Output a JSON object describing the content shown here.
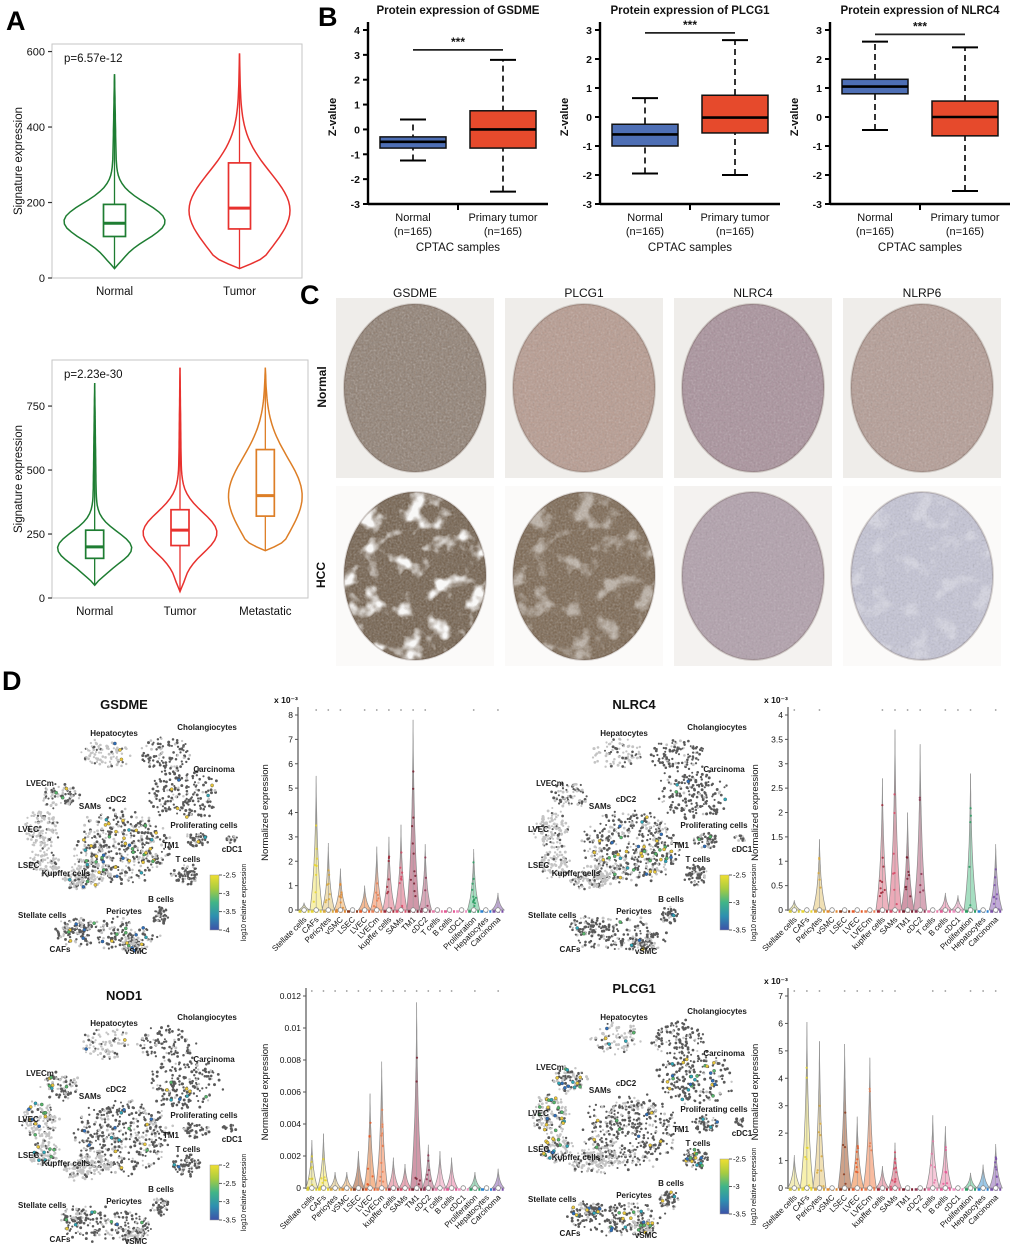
{
  "panels": {
    "A": "A",
    "B": "B",
    "C": "C",
    "D": "D"
  },
  "colors": {
    "tsne_dark": "#595959",
    "tsne_light": "#c4c4c4",
    "signal_palette": [
      "#e9c73b",
      "#57b66b",
      "#2fa7b8",
      "#2f6fba"
    ],
    "colorbar_gradient": [
      "#f0df30",
      "#a8cc40",
      "#40b488",
      "#2e8fb0",
      "#3d52a8"
    ]
  },
  "chart_data": [
    {
      "id": "A-top",
      "type": "violin",
      "p_value": "p=6.57e-12",
      "ylabel": "Signature expression",
      "ylim": [
        0,
        620
      ],
      "yticks": [
        0,
        200,
        400,
        600
      ],
      "categories": [
        "Normal",
        "Tumor"
      ],
      "colors": [
        "#1e7d32",
        "#e8312e"
      ],
      "stats": [
        {
          "min": 25,
          "q1": 110,
          "median": 145,
          "q3": 195,
          "max": 540,
          "bulge": 150
        },
        {
          "min": 25,
          "q1": 130,
          "median": 185,
          "q3": 305,
          "max": 595,
          "bulge": 180
        }
      ]
    },
    {
      "id": "A-bottom",
      "type": "violin",
      "p_value": "p=2.23e-30",
      "ylabel": "Signature expression",
      "ylim": [
        0,
        930
      ],
      "yticks": [
        0,
        250,
        500,
        750
      ],
      "categories": [
        "Normal",
        "Tumor",
        "Metastatic"
      ],
      "colors": [
        "#1e7d32",
        "#e8312e",
        "#dd7e26"
      ],
      "stats": [
        {
          "min": 50,
          "q1": 155,
          "median": 200,
          "q3": 265,
          "max": 840,
          "bulge": 195
        },
        {
          "min": 25,
          "q1": 205,
          "median": 265,
          "q3": 345,
          "max": 900,
          "bulge": 255
        },
        {
          "min": 185,
          "q1": 320,
          "median": 400,
          "q3": 580,
          "max": 900,
          "bulge": 400
        }
      ]
    },
    {
      "id": "B-GSDME",
      "type": "box",
      "title": "Protein expression of GSDME",
      "ylabel": "Z-value",
      "xlabel": "CPTAC samples",
      "significance": "***",
      "sig_y": 3.2,
      "ylim": [
        -3,
        4
      ],
      "yticks": [
        -3,
        -2,
        -1,
        0,
        1,
        2,
        3,
        4
      ],
      "categories": [
        [
          "Normal",
          "(n=165)"
        ],
        [
          "Primary tumor",
          "(n=165)"
        ]
      ],
      "colors": [
        "#4e6fb5",
        "#e64a2c"
      ],
      "stats": [
        {
          "low": -1.25,
          "q1": -0.75,
          "median": -0.5,
          "q3": -0.3,
          "high": 0.4
        },
        {
          "low": -2.5,
          "q1": -0.75,
          "median": 0.0,
          "q3": 0.75,
          "high": 2.8
        }
      ]
    },
    {
      "id": "B-PLCG1",
      "type": "box",
      "title": "Protein expression of PLCG1",
      "ylabel": "Z-value",
      "xlabel": "CPTAC samples",
      "significance": "***",
      "sig_y": 2.9,
      "ylim": [
        -3,
        3
      ],
      "yticks": [
        -3,
        -2,
        -1,
        0,
        1,
        2,
        3
      ],
      "categories": [
        [
          "Normal",
          "(n=165)"
        ],
        [
          "Primary tumor",
          "(n=165)"
        ]
      ],
      "colors": [
        "#4e6fb5",
        "#e64a2c"
      ],
      "stats": [
        {
          "low": -1.95,
          "q1": -1.0,
          "median": -0.6,
          "q3": -0.25,
          "high": 0.65
        },
        {
          "low": -2.0,
          "q1": -0.55,
          "median": -0.02,
          "q3": 0.75,
          "high": 2.65
        }
      ]
    },
    {
      "id": "B-NLRC4",
      "type": "box",
      "title": "Protein expression of NLRC4",
      "ylabel": "Z-value",
      "xlabel": "CPTAC samples",
      "significance": "***",
      "sig_y": 2.85,
      "ylim": [
        -3,
        3
      ],
      "yticks": [
        -3,
        -2,
        -1,
        0,
        1,
        2,
        3
      ],
      "categories": [
        [
          "Normal",
          "(n=165)"
        ],
        [
          "Primary tumor",
          "(n=165)"
        ]
      ],
      "colors": [
        "#4e6fb5",
        "#e64a2c"
      ],
      "stats": [
        {
          "low": -0.45,
          "q1": 0.8,
          "median": 1.05,
          "q3": 1.3,
          "high": 2.6
        },
        {
          "low": -2.55,
          "q1": -0.65,
          "median": 0.0,
          "q3": 0.55,
          "high": 2.4
        }
      ]
    },
    {
      "id": "D-GSDME-violin",
      "type": "violin",
      "title": "GSDME",
      "ylabel": "Normalized expression",
      "scale_label": "x 10⁻³",
      "ymax": 8,
      "yticks": [
        0,
        1,
        2,
        3,
        4,
        5,
        6,
        7,
        8
      ],
      "categories": [
        "Stellate cells",
        "CAFs",
        "Pericytes",
        "vSMC",
        "LSEC",
        "LVEC",
        "LVECm",
        "kupffer cells",
        "SAMs",
        "TM1",
        "cDC2",
        "T cells",
        "B cells",
        "cDC1",
        "Proliferation",
        "Hepatocytes",
        "Carcinoma"
      ],
      "peaks": [
        0.3,
        5.5,
        2.75,
        1.7,
        0.05,
        1.0,
        2.6,
        3.0,
        3.5,
        7.8,
        2.7,
        0.05,
        0.05,
        0.05,
        2.5,
        0.1,
        0.7
      ]
    },
    {
      "id": "D-NLRC4-violin",
      "type": "violin",
      "title": "NLRC4",
      "ylabel": "Normalized expression",
      "scale_label": "x 10⁻³",
      "ymax": 4,
      "yticks": [
        0,
        0.5,
        1,
        1.5,
        2,
        2.5,
        3,
        3.5,
        4
      ],
      "categories": [
        "Stellate cells",
        "CAFs",
        "Pericytes",
        "vSMC",
        "LSEC",
        "LVEC",
        "LVECm",
        "kupffer cells",
        "SAMs",
        "TM1",
        "cDC2",
        "T cells",
        "B cells",
        "cDC1",
        "Proliferation",
        "Hepatocytes",
        "Carcinoma"
      ],
      "peaks": [
        0.2,
        0.05,
        1.45,
        0.05,
        0,
        0.05,
        0.05,
        2.7,
        3.7,
        2.0,
        3.4,
        0.05,
        0.35,
        0.3,
        2.8,
        0.05,
        1.35
      ]
    },
    {
      "id": "D-NOD1-violin",
      "type": "violin",
      "title": "NOD1",
      "ylabel": "Normalized expression",
      "scale_label": "",
      "ymax": 0.012,
      "yticks": [
        0,
        0.002,
        0.004,
        0.006,
        0.008,
        0.01,
        0.012
      ],
      "categories": [
        "Stellate cells",
        "CAFs",
        "Pericytes",
        "vSMC",
        "LSEC",
        "LVEC",
        "LVECm",
        "kupffer cells",
        "SAMs",
        "TM1",
        "cDC2",
        "T cells",
        "B cells",
        "cDC1",
        "Proliferation",
        "Hepatocytes",
        "Carcinoma"
      ],
      "peaks": [
        0.003,
        0.0034,
        0.001,
        0.001,
        0.0023,
        0.0059,
        0.0079,
        0.0019,
        0.0015,
        0.0116,
        0.0027,
        0.0023,
        0.0019,
        0.0001,
        0.001,
        0.0001,
        0.0012
      ]
    },
    {
      "id": "D-PLCG1-violin",
      "type": "violin",
      "title": "PLCG1",
      "ylabel": "Normalized expression",
      "scale_label": "x 10⁻³",
      "ymax": 7,
      "yticks": [
        0,
        1,
        2,
        3,
        4,
        5,
        6,
        7
      ],
      "categories": [
        "Stellate cells",
        "CAFs",
        "Pericytes",
        "vSMC",
        "LSEC",
        "LVEC",
        "LVECm",
        "kupffer cells",
        "SAMs",
        "TM1",
        "cDC2",
        "T cells",
        "B cells",
        "cDC1",
        "Proliferation",
        "Hepatocytes",
        "Carcinoma"
      ],
      "peaks": [
        1.2,
        6.05,
        5.35,
        0.05,
        5.25,
        2.6,
        4.75,
        0.8,
        1.65,
        0.05,
        0.05,
        2.65,
        2.25,
        0.05,
        0.55,
        0.85,
        1.6
      ]
    },
    {
      "id": "D-GSDME-tsne",
      "type": "scatter",
      "title": "GSDME",
      "colorbar": {
        "label": "log10 relative expression",
        "ticks": [
          "-2.5",
          "-3",
          "-3.5",
          "-4"
        ]
      },
      "signal_regions": [
        {
          "area": "central",
          "count": 40
        },
        {
          "area": "bottom",
          "count": 16
        },
        {
          "area": "carcinoma",
          "count": 6
        },
        {
          "area": "hepatocytes",
          "count": 3
        },
        {
          "area": "lvecm",
          "count": 3
        },
        {
          "area": "prolif",
          "count": 2
        },
        {
          "area": "vsmc",
          "count": 4
        },
        {
          "area": "kupffer",
          "count": 4
        }
      ]
    },
    {
      "id": "D-NLRC4-tsne",
      "type": "scatter",
      "title": "NLRC4",
      "colorbar": {
        "label": "log10 relative expression",
        "ticks": [
          "-2.5",
          "-3",
          "-3.5"
        ]
      },
      "signal_regions": [
        {
          "area": "central",
          "count": 38
        },
        {
          "area": "bottom",
          "count": 4
        },
        {
          "area": "prolif",
          "count": 3
        },
        {
          "area": "bcells",
          "count": 2
        },
        {
          "area": "carcinoma",
          "count": 4
        },
        {
          "area": "vsmc",
          "count": 2
        }
      ]
    },
    {
      "id": "D-NOD1-tsne",
      "type": "scatter",
      "title": "NOD1",
      "colorbar": {
        "label": "log10 relative expression",
        "ticks": [
          "-2",
          "-2.5",
          "-3",
          "-3.5"
        ]
      },
      "signal_regions": [
        {
          "area": "lvec",
          "count": 12
        },
        {
          "area": "lsec",
          "count": 8
        },
        {
          "area": "lvecm",
          "count": 6
        },
        {
          "area": "central",
          "count": 14
        },
        {
          "area": "carcinoma",
          "count": 8
        },
        {
          "area": "bottom",
          "count": 8
        },
        {
          "area": "tcells",
          "count": 2
        },
        {
          "area": "hepatocytes",
          "count": 2
        }
      ]
    },
    {
      "id": "D-PLCG1-tsne",
      "type": "scatter",
      "title": "PLCG1",
      "colorbar": {
        "label": "log10 relative expression",
        "ticks": [
          "-2.5",
          "-3",
          "-3.5"
        ]
      },
      "signal_regions": [
        {
          "area": "lvec",
          "count": 20
        },
        {
          "area": "lsec",
          "count": 14
        },
        {
          "area": "lvecm",
          "count": 12
        },
        {
          "area": "carcinoma",
          "count": 24
        },
        {
          "area": "central",
          "count": 10
        },
        {
          "area": "tcells",
          "count": 12
        },
        {
          "area": "bottom",
          "count": 18
        },
        {
          "area": "bcells",
          "count": 3
        },
        {
          "area": "hepatocytes",
          "count": 5
        },
        {
          "area": "prolif",
          "count": 3
        },
        {
          "area": "vsmc",
          "count": 4
        },
        {
          "area": "bottomL",
          "count": 6
        }
      ]
    }
  ],
  "panelC": {
    "col_labels": [
      "GSDME",
      "PLCG1",
      "NLRC4",
      "NLRP6"
    ],
    "row_labels": [
      "Normal",
      "HCC"
    ],
    "tissues": [
      [
        {
          "base": "#8d7b6d",
          "bg": "#efedea",
          "spk": 0.55,
          "blotch": 0
        },
        {
          "base": "#b89a8e",
          "bg": "#efedea",
          "spk": 0.45,
          "blotch": 0
        },
        {
          "base": "#a9909b",
          "bg": "#efedea",
          "spk": 0.45,
          "blotch": 0
        },
        {
          "base": "#b59c94",
          "bg": "#efedea",
          "spk": 0.45,
          "blotch": 0
        }
      ],
      [
        {
          "base": "#6e5a45",
          "bg": "#fbfaf9",
          "spk": 0.5,
          "blotch": 0.95
        },
        {
          "base": "#77614a",
          "bg": "#fbfaf9",
          "spk": 0.5,
          "blotch": 0.45
        },
        {
          "base": "#b2a0ac",
          "bg": "#f4f2f0",
          "spk": 0.4,
          "blotch": 0
        },
        {
          "base": "#c6c6d8",
          "bg": "#fbfaf9",
          "spk": 0.45,
          "blotch": 0.25
        }
      ]
    ]
  },
  "panelD": {
    "cluster_labels": [
      "Hepatocytes",
      "Cholangiocytes",
      "Carcinoma",
      "LVECm",
      "LVEC",
      "LSEC",
      "SAMs",
      "cDC2",
      "TM1",
      "Proliferating cells",
      "cDC1",
      "T cells",
      "Kupffer cells",
      "B cells",
      "Stellate cells",
      "Pericytes",
      "CAFs",
      "vSMC"
    ],
    "violin_fill": [
      "#efe9a8",
      "#f6ee9a",
      "#ecd8a2",
      "#f4c896",
      "#c08a6b",
      "#f2a878",
      "#f7ab88",
      "#e9a0ae",
      "#e795a6",
      "#c47d92",
      "#cd92a6",
      "#f4bcd0",
      "#f0a9c2",
      "#f6bcd4",
      "#90d6b2",
      "#82bce4",
      "#b295cd"
    ],
    "violin_dash": [
      "#d6c832",
      "#e8d52e",
      "#d8a83c",
      "#e08830",
      "#8a3a1e",
      "#e55a28",
      "#e87f52",
      "#a02838",
      "#d84a66",
      "#7a2030",
      "#8f3552",
      "#e87aa8",
      "#e45a96",
      "#ef8fc0",
      "#2a9e62",
      "#2980d0",
      "#7a4fa8"
    ]
  }
}
